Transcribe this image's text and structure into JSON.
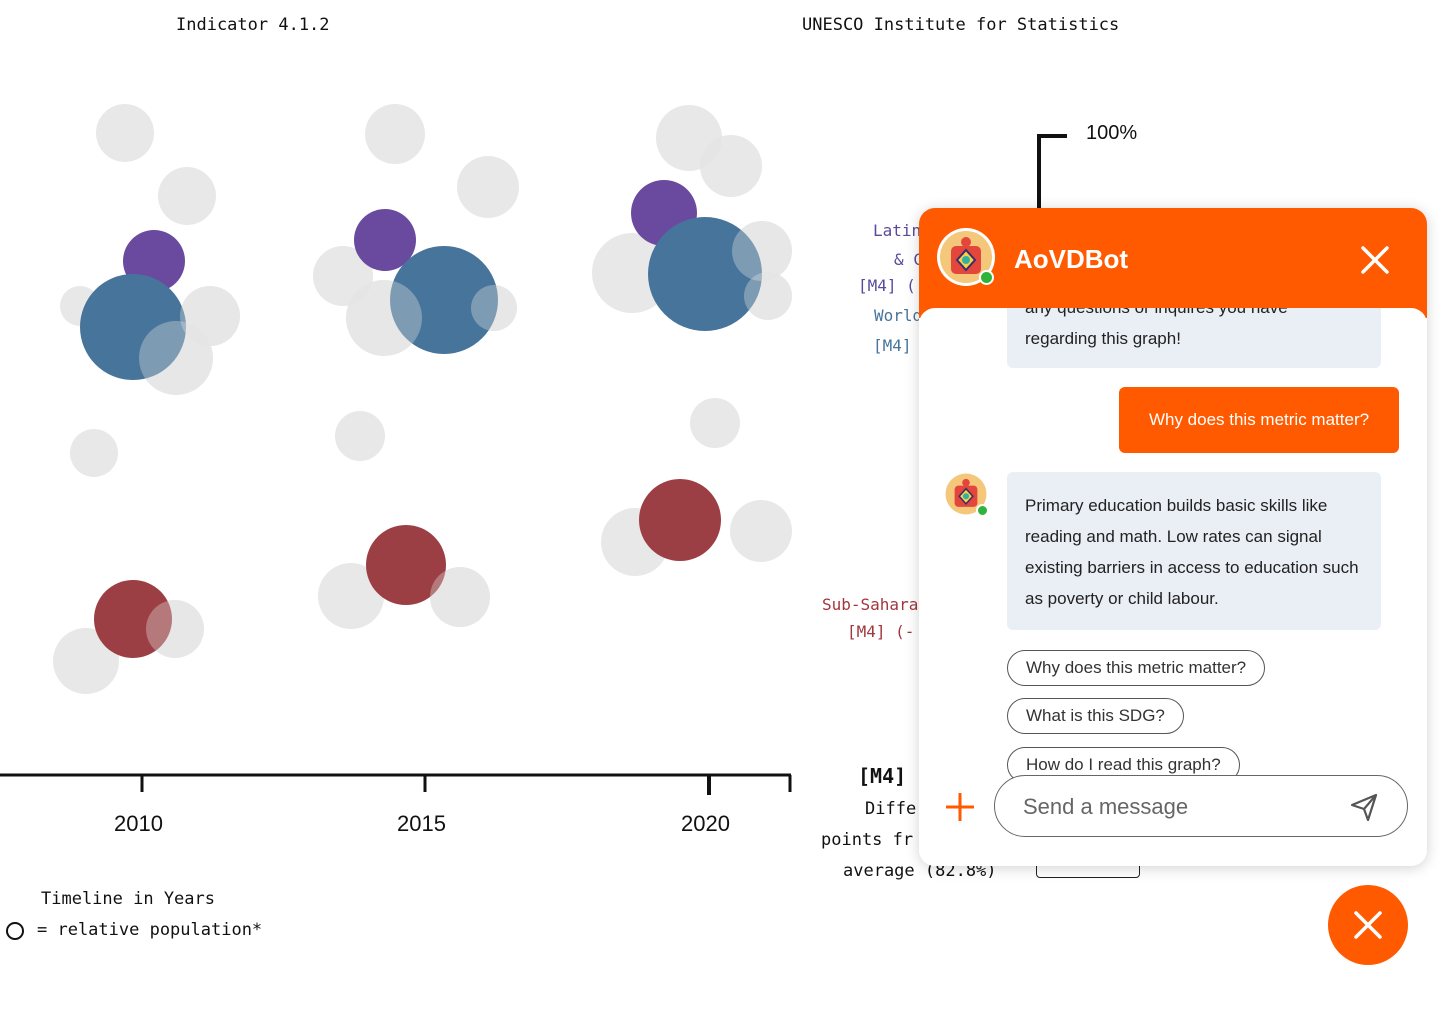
{
  "header": {
    "indicator": "Indicator 4.1.2",
    "source": "UNESCO Institute for Statistics"
  },
  "chart_data": {
    "type": "scatter",
    "title": "Indicator 4.1.2",
    "x_ticks": [
      "2010",
      "2015",
      "2020"
    ],
    "x_axis_title": "Timeline in Years",
    "size_legend": "= relative population*",
    "y_scale_label": "100%",
    "highlighted_series": [
      {
        "name": "Latin America & Caribbean",
        "color": "#6a4a9e",
        "years": [
          2010,
          2015,
          2020
        ]
      },
      {
        "name": "World",
        "color": "#47749a",
        "years": [
          2010,
          2015,
          2020
        ]
      },
      {
        "name": "Sub-Saharan Africa",
        "color": "#9b3f44",
        "years": [
          2010,
          2015,
          2020
        ]
      }
    ],
    "background_series_color": "#e4e4e4",
    "grid": false
  },
  "region_labels": {
    "latin_line1": "Latin",
    "latin_line2": "& C",
    "latin_line3": "[M4] (",
    "world_line1": "World",
    "world_line2": "[M4]",
    "ssa_line1": "Sub-Sahara",
    "ssa_line2": "[M4] (-"
  },
  "difference": {
    "title": "[M4]",
    "line1": "Diffe",
    "line2": "points fr",
    "line3": "average (82.8%)"
  },
  "chat": {
    "bot_name": "AoVDBot",
    "accent": "#ff5a00",
    "messages": {
      "intro_partial": "any questions or inquires you have",
      "intro_end": "regarding this graph!",
      "user_question": "Why does this metric matter?",
      "bot_answer": "Primary education builds basic skills like reading and math. Low rates can signal existing barriers in access to education such as poverty or child labour."
    },
    "suggestions": [
      "Why does this metric matter?",
      "What is this SDG?",
      "How do I read this graph?"
    ],
    "input_placeholder": "Send a message"
  },
  "icons": {
    "close": "close-icon",
    "add": "plus-icon",
    "send": "send-icon",
    "avatar": "bot-avatar-icon"
  }
}
